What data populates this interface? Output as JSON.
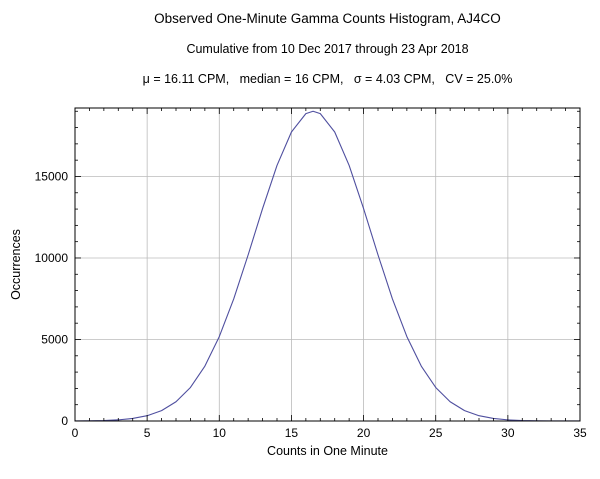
{
  "chart_data": {
    "type": "line",
    "title": "Observed One-Minute Gamma Counts Histogram, AJ4CO",
    "subtitle": "Cumulative from 10 Dec 2017 through 23 Apr 2018",
    "stats_line": "μ = 16.11 CPM,   median = 16 CPM,   σ = 4.03 CPM,   CV = 25.0%",
    "xlabel": "Counts in One Minute",
    "ylabel": "Occurrences",
    "xlim": [
      0,
      35
    ],
    "ylim": [
      0,
      19200
    ],
    "x_major_ticks": [
      0,
      5,
      10,
      15,
      20,
      25,
      30,
      35
    ],
    "x_minor_step": 1,
    "y_major_ticks": [
      0,
      5000,
      10000,
      15000
    ],
    "y_minor_step": 1000,
    "x_gridlines": [
      5,
      10,
      15,
      20,
      25,
      30
    ],
    "y_gridlines": [
      5000,
      10000,
      15000
    ],
    "grid_on": true,
    "legend": "none",
    "line_color": "#4f4f9f",
    "grid_color": "#bbbbbb",
    "frame_color": "#000000",
    "x": [
      0,
      1,
      2,
      3,
      4,
      5,
      6,
      7,
      8,
      9,
      10,
      11,
      12,
      13,
      14,
      15,
      16,
      16.5,
      17,
      18,
      19,
      20,
      21,
      22,
      23,
      24,
      25,
      26,
      27,
      28,
      29,
      30,
      31,
      32,
      33,
      34,
      35
    ],
    "y": [
      4,
      12,
      29,
      70,
      155,
      324,
      638,
      1181,
      2056,
      3365,
      5178,
      7490,
      10190,
      13032,
      15675,
      17729,
      18854,
      19000,
      18854,
      17729,
      15675,
      13032,
      10190,
      7490,
      5178,
      3365,
      2056,
      1181,
      638,
      324,
      155,
      70,
      29,
      12,
      4,
      2,
      1
    ]
  }
}
